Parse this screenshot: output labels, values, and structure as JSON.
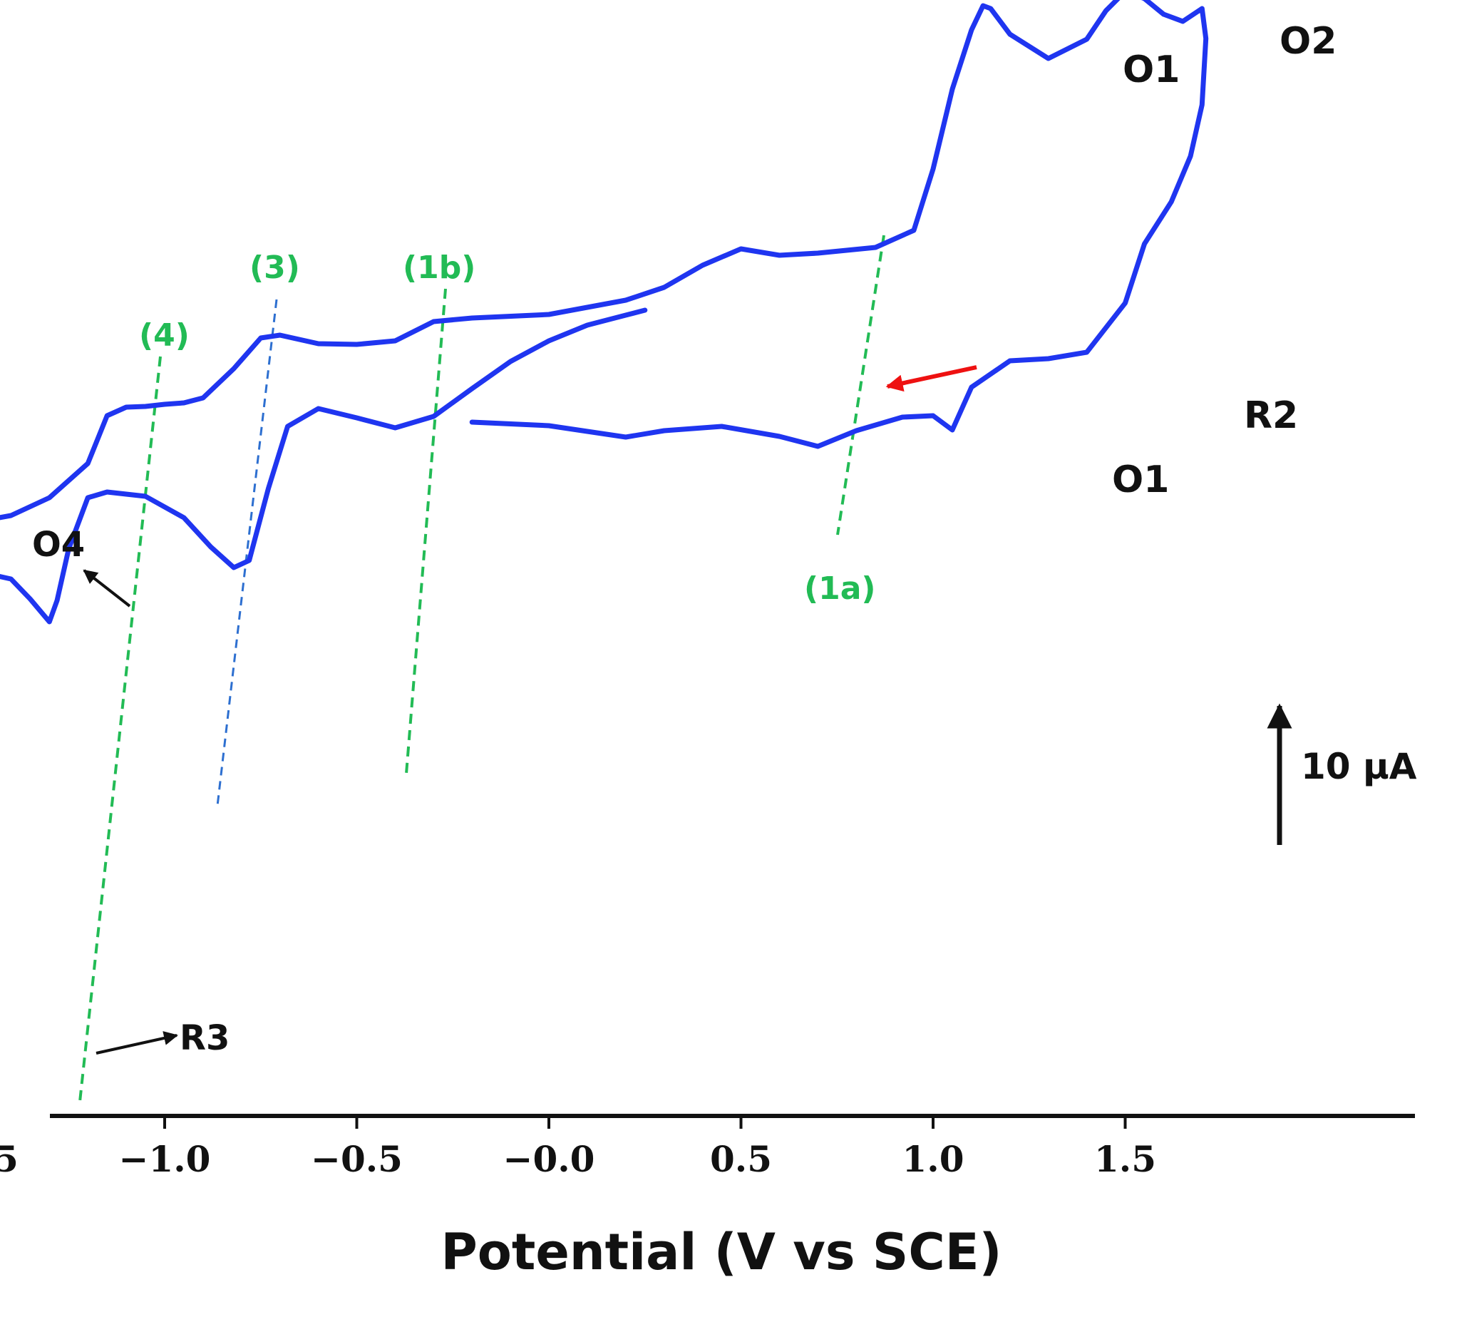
{
  "chart_data": {
    "type": "line",
    "title": "",
    "xlabel": "Potential (V vs SCE)",
    "ylabel": "",
    "xlim": [
      -1.75,
      1.8
    ],
    "grid": false,
    "x_ticks": [
      {
        "value": -1.5,
        "label": "−1.5"
      },
      {
        "value": -1.0,
        "label": "−1.0"
      },
      {
        "value": -0.5,
        "label": "−0.5"
      },
      {
        "value": 0.0,
        "label": "−0.0"
      },
      {
        "value": 0.5,
        "label": "0.5"
      },
      {
        "value": 1.0,
        "label": "1.0"
      },
      {
        "value": 1.5,
        "label": "1.5"
      }
    ],
    "current_scale": {
      "label": "10 μA",
      "value_uA": 10
    },
    "series": [
      {
        "name": "cyclic voltammogram",
        "color": "#1f35f0",
        "x_unit": "V vs SCE",
        "y_unit": "μA (relative)",
        "points": [
          [
            -0.2,
            -38.2
          ],
          [
            0.0,
            -38.7
          ],
          [
            0.2,
            -40.3
          ],
          [
            0.3,
            -39.4
          ],
          [
            0.45,
            -38.8
          ],
          [
            0.6,
            -40.2
          ],
          [
            0.7,
            -41.6
          ],
          [
            0.8,
            -39.4
          ],
          [
            0.92,
            -37.5
          ],
          [
            1.0,
            -37.3
          ],
          [
            1.05,
            -39.3
          ],
          [
            1.1,
            -33.3
          ],
          [
            1.2,
            -29.6
          ],
          [
            1.3,
            -29.3
          ],
          [
            1.4,
            -28.4
          ],
          [
            1.5,
            -21.5
          ],
          [
            1.55,
            -13.2
          ],
          [
            1.62,
            -7.3
          ],
          [
            1.67,
            -0.9
          ],
          [
            1.7,
            6.3
          ],
          [
            1.71,
            15.6
          ],
          [
            1.7,
            19.8
          ],
          [
            1.65,
            18.0
          ],
          [
            1.6,
            19.0
          ],
          [
            1.55,
            21.2
          ],
          [
            1.5,
            22.2
          ],
          [
            1.45,
            19.5
          ],
          [
            1.4,
            15.5
          ],
          [
            1.3,
            12.8
          ],
          [
            1.2,
            16.2
          ],
          [
            1.15,
            19.8
          ],
          [
            1.13,
            20.2
          ],
          [
            1.1,
            16.8
          ],
          [
            1.05,
            8.5
          ],
          [
            1.0,
            -2.7
          ],
          [
            0.95,
            -11.3
          ],
          [
            0.85,
            -13.7
          ],
          [
            0.7,
            -14.5
          ],
          [
            0.6,
            -14.8
          ],
          [
            0.5,
            -13.9
          ],
          [
            0.4,
            -16.2
          ],
          [
            0.3,
            -19.3
          ],
          [
            0.2,
            -21.1
          ],
          [
            0.0,
            -23.1
          ],
          [
            -0.2,
            -23.6
          ],
          [
            -0.3,
            -24.1
          ],
          [
            -0.4,
            -26.8
          ],
          [
            -0.5,
            -27.3
          ],
          [
            -0.6,
            -27.2
          ],
          [
            -0.7,
            -26.0
          ],
          [
            -0.75,
            -26.4
          ],
          [
            -0.82,
            -30.7
          ],
          [
            -0.9,
            -34.8
          ],
          [
            -0.95,
            -35.5
          ],
          [
            -1.0,
            -35.7
          ],
          [
            -1.05,
            -36.0
          ],
          [
            -1.1,
            -36.1
          ],
          [
            -1.15,
            -37.3
          ],
          [
            -1.2,
            -44.0
          ],
          [
            -1.3,
            -48.8
          ],
          [
            -1.4,
            -51.3
          ],
          [
            -1.5,
            -52.3
          ],
          [
            -1.55,
            -54.6
          ],
          [
            -1.58,
            -60.4
          ],
          [
            -1.62,
            -75.3
          ],
          [
            -1.65,
            -94.3
          ],
          [
            -1.69,
            -97.0
          ],
          [
            -1.7,
            -97.3
          ],
          [
            -1.7,
            -96.3
          ],
          [
            -1.67,
            -97.8
          ],
          [
            -1.64,
            -99.4
          ],
          [
            -1.62,
            -91.4
          ],
          [
            -1.6,
            -79.2
          ],
          [
            -1.58,
            -71.0
          ],
          [
            -1.55,
            -66.3
          ],
          [
            -1.5,
            -62.1
          ],
          [
            -1.45,
            -59.6
          ],
          [
            -1.4,
            -60.2
          ],
          [
            -1.35,
            -63.0
          ],
          [
            -1.3,
            -66.2
          ],
          [
            -1.28,
            -63.2
          ],
          [
            -1.25,
            -56.0
          ],
          [
            -1.2,
            -48.8
          ],
          [
            -1.15,
            -48.0
          ],
          [
            -1.05,
            -48.6
          ],
          [
            -0.95,
            -51.6
          ],
          [
            -0.88,
            -55.7
          ],
          [
            -0.82,
            -58.6
          ],
          [
            -0.78,
            -57.6
          ],
          [
            -0.73,
            -47.5
          ],
          [
            -0.68,
            -38.8
          ],
          [
            -0.6,
            -36.3
          ],
          [
            -0.5,
            -37.6
          ],
          [
            -0.4,
            -39.0
          ],
          [
            -0.3,
            -37.4
          ],
          [
            -0.2,
            -33.5
          ],
          [
            -0.1,
            -29.7
          ],
          [
            0.0,
            -26.8
          ],
          [
            0.1,
            -24.6
          ],
          [
            0.2,
            -23.2
          ],
          [
            0.25,
            -22.5
          ]
        ]
      }
    ],
    "peak_labels": [
      "O1",
      "O2",
      "O1",
      "R2",
      "O4",
      "R3"
    ],
    "guide_labels": [
      "(4)",
      "(3)",
      "(1b)",
      "(1a)"
    ],
    "annotations": [
      {
        "text": "O1",
        "near": "anodic peak at about 1.1 V"
      },
      {
        "text": "O2",
        "near": "anodic peak at about 1.5 V"
      },
      {
        "text": "O1",
        "near": "cathodic return wave at about 1.05 V"
      },
      {
        "text": "R2",
        "near": "cathodic wave at about 1.3 V"
      },
      {
        "text": "O4",
        "near": "anodic shoulder at about -1.53 V"
      },
      {
        "text": "R3",
        "near": "cathodic peak at about -1.64 V"
      },
      {
        "text": "(4)",
        "near": "guide through -1.55 V"
      },
      {
        "text": "(3)",
        "near": "guide through -1.25 V"
      },
      {
        "text": "(1b)",
        "near": "guide through -0.78 V"
      },
      {
        "text": "(1a)",
        "near": "guide through 0.33 V"
      },
      {
        "text": "",
        "near": "red arrow marks starting point and scan direction"
      }
    ]
  }
}
